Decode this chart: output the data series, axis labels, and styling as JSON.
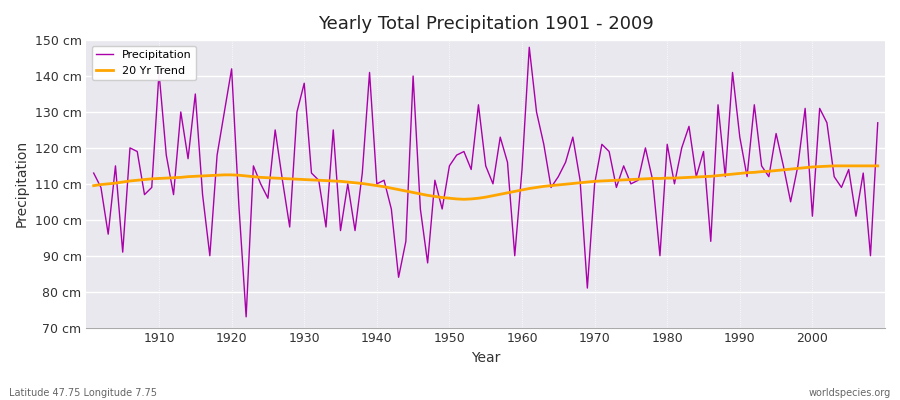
{
  "title": "Yearly Total Precipitation 1901 - 2009",
  "xlabel": "Year",
  "ylabel": "Precipitation",
  "subtitle": "Latitude 47.75 Longitude 7.75",
  "watermark": "worldspecies.org",
  "precip_color": "#aa00aa",
  "trend_color": "#FFA500",
  "plot_bg_color": "#e8e8ee",
  "fig_bg_color": "#ffffff",
  "ylim": [
    70,
    150
  ],
  "yticks": [
    70,
    80,
    90,
    100,
    110,
    120,
    130,
    140,
    150
  ],
  "xlim": [
    1900,
    2010
  ],
  "xticks": [
    1910,
    1920,
    1930,
    1940,
    1950,
    1960,
    1970,
    1980,
    1990,
    2000
  ],
  "years": [
    1901,
    1902,
    1903,
    1904,
    1905,
    1906,
    1907,
    1908,
    1909,
    1910,
    1911,
    1912,
    1913,
    1914,
    1915,
    1916,
    1917,
    1918,
    1919,
    1920,
    1921,
    1922,
    1923,
    1924,
    1925,
    1926,
    1927,
    1928,
    1929,
    1930,
    1931,
    1932,
    1933,
    1934,
    1935,
    1936,
    1937,
    1938,
    1939,
    1940,
    1941,
    1942,
    1943,
    1944,
    1945,
    1946,
    1947,
    1948,
    1949,
    1950,
    1951,
    1952,
    1953,
    1954,
    1955,
    1956,
    1957,
    1958,
    1959,
    1960,
    1961,
    1962,
    1963,
    1964,
    1965,
    1966,
    1967,
    1968,
    1969,
    1970,
    1971,
    1972,
    1973,
    1974,
    1975,
    1976,
    1977,
    1978,
    1979,
    1980,
    1981,
    1982,
    1983,
    1984,
    1985,
    1986,
    1987,
    1988,
    1989,
    1990,
    1991,
    1992,
    1993,
    1994,
    1995,
    1996,
    1997,
    1998,
    1999,
    2000,
    2001,
    2002,
    2003,
    2004,
    2005,
    2006,
    2007,
    2008,
    2009
  ],
  "precip": [
    113,
    109,
    96,
    115,
    91,
    120,
    119,
    107,
    109,
    141,
    118,
    107,
    130,
    117,
    135,
    107,
    90,
    118,
    130,
    142,
    104,
    73,
    115,
    110,
    106,
    125,
    111,
    98,
    130,
    138,
    113,
    111,
    98,
    125,
    97,
    110,
    97,
    113,
    141,
    110,
    111,
    103,
    84,
    94,
    140,
    103,
    88,
    111,
    103,
    115,
    118,
    119,
    114,
    132,
    115,
    110,
    123,
    116,
    90,
    114,
    148,
    130,
    121,
    109,
    112,
    116,
    123,
    111,
    81,
    110,
    121,
    119,
    109,
    115,
    110,
    111,
    120,
    111,
    90,
    121,
    110,
    120,
    126,
    112,
    119,
    94,
    132,
    112,
    141,
    123,
    112,
    132,
    115,
    112,
    124,
    115,
    105,
    115,
    131,
    101,
    131,
    127,
    112,
    109,
    114,
    101,
    113,
    90,
    127
  ],
  "trend": [
    109.5,
    109.8,
    110.0,
    110.2,
    110.5,
    110.8,
    111.0,
    111.2,
    111.4,
    111.5,
    111.6,
    111.7,
    111.8,
    112.0,
    112.1,
    112.2,
    112.3,
    112.4,
    112.5,
    112.5,
    112.4,
    112.2,
    112.0,
    111.8,
    111.7,
    111.6,
    111.5,
    111.4,
    111.3,
    111.2,
    111.1,
    111.0,
    110.9,
    110.8,
    110.7,
    110.5,
    110.3,
    110.1,
    109.8,
    109.5,
    109.2,
    108.8,
    108.4,
    108.0,
    107.6,
    107.2,
    106.8,
    106.5,
    106.2,
    106.0,
    105.8,
    105.7,
    105.8,
    106.0,
    106.3,
    106.7,
    107.1,
    107.5,
    107.9,
    108.3,
    108.7,
    109.0,
    109.3,
    109.5,
    109.7,
    109.9,
    110.1,
    110.3,
    110.5,
    110.7,
    110.8,
    110.9,
    111.0,
    111.1,
    111.2,
    111.3,
    111.4,
    111.5,
    111.5,
    111.6,
    111.6,
    111.7,
    111.8,
    111.9,
    112.0,
    112.1,
    112.3,
    112.5,
    112.7,
    112.9,
    113.1,
    113.2,
    113.4,
    113.5,
    113.7,
    113.9,
    114.1,
    114.3,
    114.5,
    114.7,
    114.8,
    114.9,
    115.0,
    115.0,
    115.0,
    115.0,
    115.0,
    115.0,
    115.0
  ]
}
